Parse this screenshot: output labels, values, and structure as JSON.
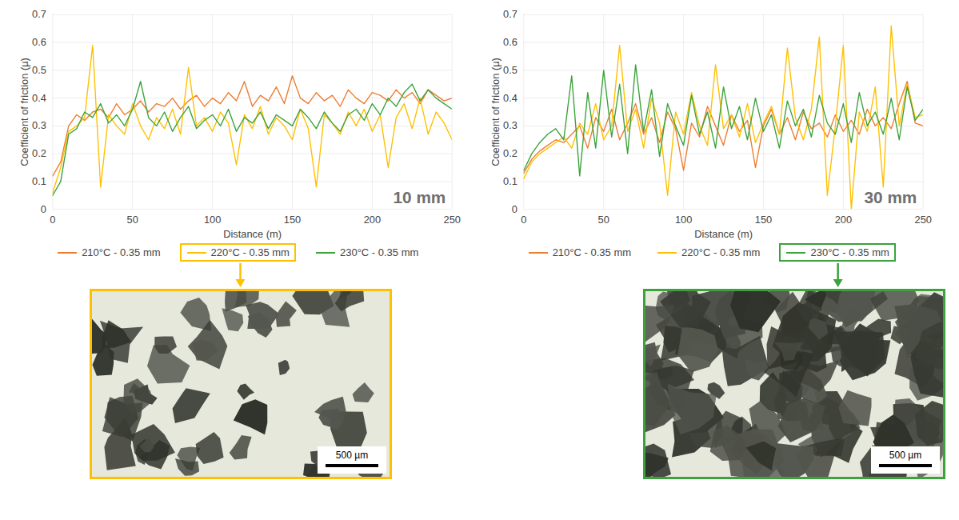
{
  "chart_data": [
    {
      "type": "line",
      "title": "10 mm",
      "xlabel": "Distance (m)",
      "ylabel": "Coefficient of friction (µ)",
      "x": [
        0,
        5,
        10,
        15,
        20,
        25,
        30,
        35,
        40,
        45,
        50,
        55,
        60,
        65,
        70,
        75,
        80,
        85,
        90,
        95,
        100,
        105,
        110,
        115,
        120,
        125,
        130,
        135,
        140,
        145,
        150,
        155,
        160,
        165,
        170,
        175,
        180,
        185,
        190,
        195,
        200,
        205,
        210,
        215,
        220,
        225,
        230,
        235,
        240,
        245,
        250
      ],
      "xlim": [
        0,
        250
      ],
      "xticks": [
        0,
        50,
        100,
        150,
        200,
        250
      ],
      "ylim": [
        0,
        0.7
      ],
      "yticks": [
        0,
        0.1,
        0.2,
        0.3,
        0.4,
        0.5,
        0.6,
        0.7
      ],
      "grid": true,
      "legend": "bottom",
      "series": [
        {
          "name": "210°C - 0.35 mm",
          "color": "#ed7d31",
          "values": [
            0.12,
            0.17,
            0.3,
            0.34,
            0.32,
            0.35,
            0.36,
            0.33,
            0.38,
            0.34,
            0.36,
            0.39,
            0.35,
            0.38,
            0.37,
            0.4,
            0.36,
            0.39,
            0.41,
            0.37,
            0.4,
            0.38,
            0.42,
            0.39,
            0.46,
            0.37,
            0.41,
            0.39,
            0.44,
            0.38,
            0.48,
            0.4,
            0.38,
            0.42,
            0.39,
            0.41,
            0.37,
            0.43,
            0.4,
            0.38,
            0.42,
            0.41,
            0.39,
            0.43,
            0.4,
            0.42,
            0.38,
            0.43,
            0.41,
            0.39,
            0.4
          ]
        },
        {
          "name": "220°C - 0.35 mm",
          "color": "#ffc000",
          "values": [
            0.06,
            0.15,
            0.28,
            0.3,
            0.33,
            0.59,
            0.08,
            0.34,
            0.3,
            0.27,
            0.38,
            0.3,
            0.25,
            0.33,
            0.29,
            0.36,
            0.27,
            0.51,
            0.3,
            0.33,
            0.28,
            0.35,
            0.31,
            0.16,
            0.34,
            0.29,
            0.37,
            0.27,
            0.33,
            0.3,
            0.25,
            0.36,
            0.29,
            0.08,
            0.34,
            0.31,
            0.27,
            0.35,
            0.3,
            0.36,
            0.28,
            0.34,
            0.15,
            0.33,
            0.38,
            0.29,
            0.4,
            0.27,
            0.35,
            0.31,
            0.25
          ]
        },
        {
          "name": "230°C - 0.35 mm",
          "color": "#3ca33c",
          "values": [
            0.05,
            0.1,
            0.27,
            0.29,
            0.35,
            0.33,
            0.38,
            0.31,
            0.34,
            0.3,
            0.36,
            0.46,
            0.33,
            0.3,
            0.35,
            0.28,
            0.33,
            0.37,
            0.29,
            0.32,
            0.34,
            0.3,
            0.36,
            0.28,
            0.33,
            0.31,
            0.35,
            0.29,
            0.34,
            0.32,
            0.3,
            0.36,
            0.33,
            0.29,
            0.35,
            0.31,
            0.28,
            0.34,
            0.36,
            0.32,
            0.38,
            0.34,
            0.4,
            0.37,
            0.42,
            0.45,
            0.39,
            0.43,
            0.4,
            0.38,
            0.36
          ]
        }
      ],
      "micrograph": {
        "series": "220°C - 0.35 mm",
        "scale_bar": "500 µm"
      }
    },
    {
      "type": "line",
      "title": "30 mm",
      "xlabel": "Distance (m)",
      "ylabel": "Coefficient of friction (µ)",
      "x": [
        0,
        5,
        10,
        15,
        20,
        25,
        30,
        35,
        40,
        45,
        50,
        55,
        60,
        65,
        70,
        75,
        80,
        85,
        90,
        95,
        100,
        105,
        110,
        115,
        120,
        125,
        130,
        135,
        140,
        145,
        150,
        155,
        160,
        165,
        170,
        175,
        180,
        185,
        190,
        195,
        200,
        205,
        210,
        215,
        220,
        225,
        230,
        235,
        240,
        245,
        250
      ],
      "xlim": [
        0,
        250
      ],
      "xticks": [
        0,
        50,
        100,
        150,
        200,
        250
      ],
      "ylim": [
        0,
        0.7
      ],
      "yticks": [
        0,
        0.1,
        0.2,
        0.3,
        0.4,
        0.5,
        0.6,
        0.7
      ],
      "grid": true,
      "legend": "bottom",
      "series": [
        {
          "name": "210°C - 0.35 mm",
          "color": "#ed7d31",
          "values": [
            0.13,
            0.18,
            0.21,
            0.23,
            0.25,
            0.24,
            0.27,
            0.3,
            0.22,
            0.33,
            0.28,
            0.36,
            0.25,
            0.31,
            0.38,
            0.27,
            0.33,
            0.24,
            0.35,
            0.29,
            0.14,
            0.31,
            0.26,
            0.37,
            0.3,
            0.23,
            0.34,
            0.28,
            0.32,
            0.15,
            0.3,
            0.36,
            0.27,
            0.33,
            0.25,
            0.35,
            0.29,
            0.31,
            0.26,
            0.34,
            0.28,
            0.32,
            0.27,
            0.36,
            0.3,
            0.33,
            0.29,
            0.38,
            0.46,
            0.31,
            0.3
          ]
        },
        {
          "name": "220°C - 0.35 mm",
          "color": "#ffc000",
          "values": [
            0.11,
            0.17,
            0.2,
            0.22,
            0.24,
            0.26,
            0.22,
            0.31,
            0.27,
            0.38,
            0.25,
            0.3,
            0.59,
            0.28,
            0.36,
            0.22,
            0.4,
            0.31,
            0.05,
            0.35,
            0.27,
            0.42,
            0.3,
            0.23,
            0.52,
            0.29,
            0.34,
            0.26,
            0.38,
            0.24,
            0.31,
            0.37,
            0.27,
            0.58,
            0.33,
            0.25,
            0.36,
            0.62,
            0.05,
            0.3,
            0.59,
            0.0,
            0.35,
            0.28,
            0.44,
            0.08,
            0.66,
            0.3,
            0.45,
            0.33,
            0.34
          ]
        },
        {
          "name": "230°C - 0.35 mm",
          "color": "#3ca33c",
          "values": [
            0.14,
            0.2,
            0.24,
            0.27,
            0.29,
            0.25,
            0.48,
            0.12,
            0.42,
            0.22,
            0.5,
            0.26,
            0.45,
            0.2,
            0.52,
            0.28,
            0.43,
            0.19,
            0.38,
            0.3,
            0.23,
            0.41,
            0.27,
            0.35,
            0.22,
            0.44,
            0.29,
            0.37,
            0.25,
            0.4,
            0.28,
            0.34,
            0.22,
            0.39,
            0.3,
            0.36,
            0.26,
            0.41,
            0.31,
            0.27,
            0.38,
            0.24,
            0.42,
            0.3,
            0.35,
            0.27,
            0.4,
            0.25,
            0.44,
            0.32,
            0.36
          ]
        }
      ],
      "micrograph": {
        "series": "230°C - 0.35 mm",
        "scale_bar": "500 µm"
      }
    }
  ]
}
